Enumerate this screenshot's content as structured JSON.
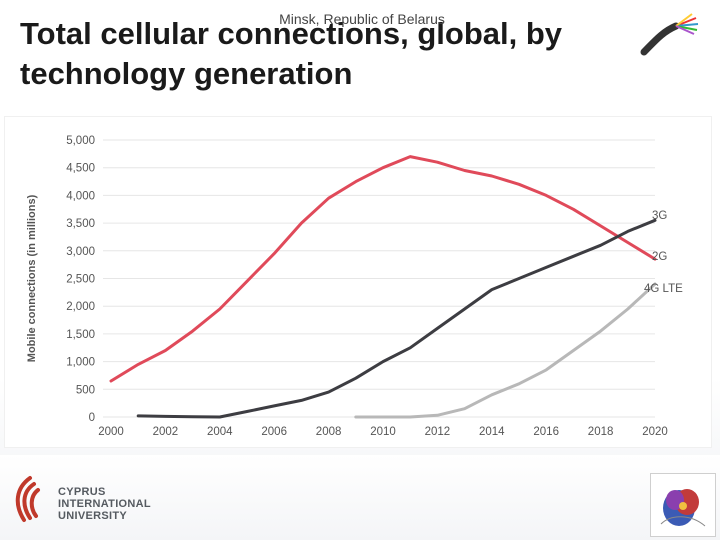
{
  "header": {
    "location": "Minsk, Republic of Belarus",
    "title": "Total cellular connections, global, by technology generation"
  },
  "footer": {
    "university_name": "CYPRUS\nINTERNATIONAL\nUNIVERSITY"
  },
  "colors": {
    "series_2g": "#e04a5a",
    "series_3g": "#3d3d42",
    "series_4g": "#b8b8b8"
  },
  "icons": {
    "header_logo": "fiber-optic-cable-icon",
    "footer_left_logo": "cyprus-international-university-logo",
    "footer_right_logo": "flower-logo"
  },
  "chart_data": {
    "type": "line",
    "title": "",
    "xlabel": "",
    "ylabel": "Mobile connections (in millions)",
    "xlim": [
      2000,
      2020
    ],
    "ylim": [
      0,
      5000
    ],
    "x_ticks": [
      "2000",
      "2002",
      "2004",
      "2006",
      "2008",
      "2010",
      "2012",
      "2014",
      "2016",
      "2018",
      "2020"
    ],
    "y_ticks": [
      "0",
      "500",
      "1,000",
      "1,500",
      "2,000",
      "2,500",
      "3,000",
      "3,500",
      "4,000",
      "4,500",
      "5,000"
    ],
    "grid": true,
    "legend": "inline-right",
    "series": [
      {
        "name": "2G",
        "color": "#e04a5a",
        "points": [
          [
            2000,
            650
          ],
          [
            2001,
            950
          ],
          [
            2002,
            1200
          ],
          [
            2003,
            1550
          ],
          [
            2004,
            1950
          ],
          [
            2005,
            2450
          ],
          [
            2006,
            2950
          ],
          [
            2007,
            3500
          ],
          [
            2008,
            3950
          ],
          [
            2009,
            4250
          ],
          [
            2010,
            4500
          ],
          [
            2011,
            4700
          ],
          [
            2012,
            4600
          ],
          [
            2013,
            4450
          ],
          [
            2014,
            4350
          ],
          [
            2015,
            4200
          ],
          [
            2016,
            4000
          ],
          [
            2017,
            3750
          ],
          [
            2018,
            3450
          ],
          [
            2019,
            3150
          ],
          [
            2020,
            2850
          ]
        ]
      },
      {
        "name": "3G",
        "color": "#3d3d42",
        "points": [
          [
            2001,
            20
          ],
          [
            2002,
            10
          ],
          [
            2003,
            5
          ],
          [
            2004,
            0
          ],
          [
            2005,
            100
          ],
          [
            2006,
            200
          ],
          [
            2007,
            300
          ],
          [
            2008,
            450
          ],
          [
            2009,
            700
          ],
          [
            2010,
            1000
          ],
          [
            2011,
            1250
          ],
          [
            2012,
            1600
          ],
          [
            2013,
            1950
          ],
          [
            2014,
            2300
          ],
          [
            2015,
            2500
          ],
          [
            2016,
            2700
          ],
          [
            2017,
            2900
          ],
          [
            2018,
            3100
          ],
          [
            2019,
            3350
          ],
          [
            2020,
            3550
          ]
        ]
      },
      {
        "name": "4G LTE",
        "color": "#b8b8b8",
        "points": [
          [
            2009,
            0
          ],
          [
            2010,
            0
          ],
          [
            2011,
            0
          ],
          [
            2012,
            30
          ],
          [
            2013,
            150
          ],
          [
            2014,
            400
          ],
          [
            2015,
            600
          ],
          [
            2016,
            850
          ],
          [
            2017,
            1200
          ],
          [
            2018,
            1550
          ],
          [
            2019,
            1950
          ],
          [
            2020,
            2400
          ]
        ]
      }
    ]
  }
}
